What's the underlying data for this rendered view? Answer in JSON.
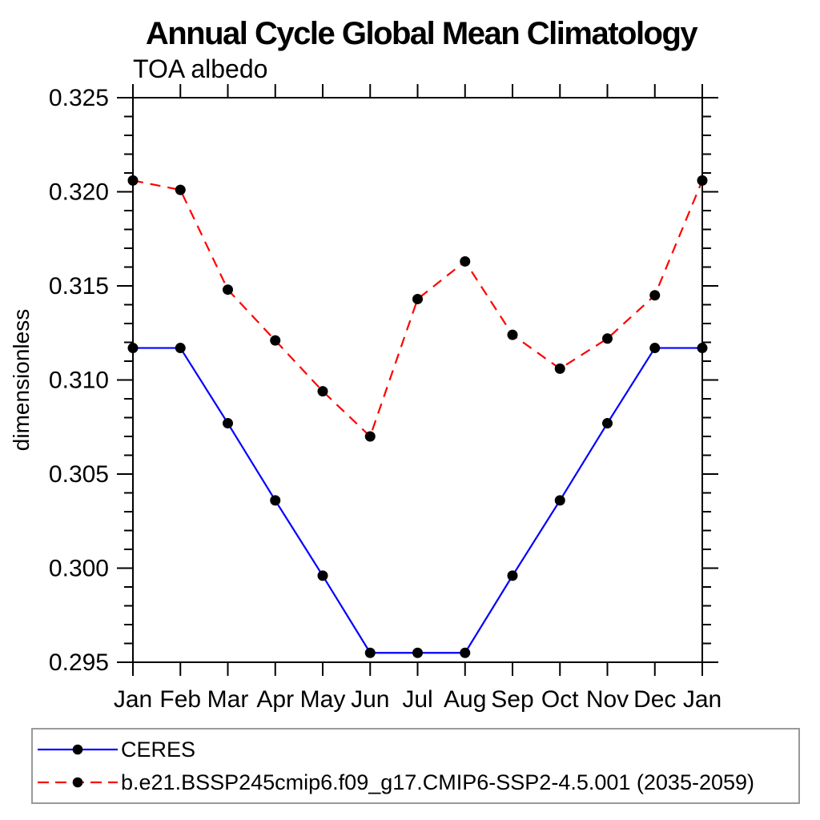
{
  "figure": {
    "title": "Annual Cycle Global Mean Climatology",
    "subtitle": "TOA albedo"
  },
  "chart_data": {
    "type": "line",
    "title": "Annual Cycle Global Mean Climatology",
    "subtitle": "TOA albedo",
    "xlabel": "",
    "ylabel": "dimensionless",
    "categories": [
      "Jan",
      "Feb",
      "Mar",
      "Apr",
      "May",
      "Jun",
      "Jul",
      "Aug",
      "Sep",
      "Oct",
      "Nov",
      "Dec",
      "Jan"
    ],
    "ylim": [
      0.295,
      0.325
    ],
    "yticks": {
      "major": [
        0.295,
        0.3,
        0.305,
        0.31,
        0.315,
        0.32,
        0.325
      ],
      "labels": [
        "0.295",
        "0.300",
        "0.305",
        "0.310",
        "0.315",
        "0.320",
        "0.325"
      ],
      "minor_step": 0.001
    },
    "grid": false,
    "legend_position": "bottom",
    "axis_color": "#000000",
    "series": [
      {
        "name": "CERES",
        "color": "#0000ff",
        "line_style": "solid",
        "marker": "circle",
        "marker_color": "#000000",
        "values": [
          0.3117,
          0.3117,
          0.3077,
          0.3036,
          0.2996,
          0.2955,
          0.2955,
          0.2955,
          0.2996,
          0.3036,
          0.3077,
          0.3117,
          0.3117
        ]
      },
      {
        "name": "b.e21.BSSP245cmip6.f09_g17.CMIP6-SSP2-4.5.001 (2035-2059)",
        "color": "#ff0000",
        "line_style": "dashed",
        "marker": "circle",
        "marker_color": "#000000",
        "values": [
          0.3206,
          0.3201,
          0.3148,
          0.3121,
          0.3094,
          0.307,
          0.3143,
          0.3163,
          0.3124,
          0.3106,
          0.3122,
          0.3145,
          0.3206
        ]
      }
    ],
    "legend_border_color": "#999999"
  }
}
